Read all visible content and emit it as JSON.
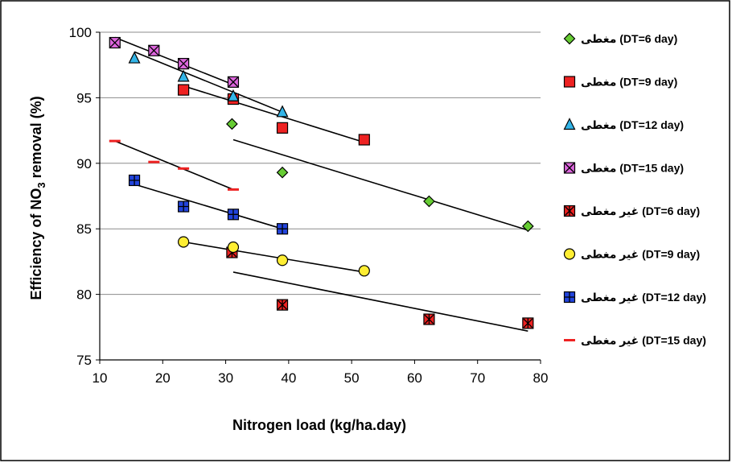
{
  "chart_data": {
    "type": "scatter",
    "title": "",
    "xlabel": "Nitrogen load (kg/ha.day)",
    "ylabel_prefix": "Efficiency of  NO",
    "ylabel_sub": "3",
    "ylabel_suffix": " removal (%)",
    "xlim": [
      10,
      80
    ],
    "ylim": [
      75,
      100
    ],
    "x_ticks": [
      "10",
      "20",
      "30",
      "40",
      "50",
      "60",
      "70",
      "80"
    ],
    "y_ticks": [
      "75",
      "80",
      "85",
      "90",
      "95",
      "100"
    ],
    "grid": "horizontal",
    "legend_position": "right",
    "series": [
      {
        "name": "مغطی (DT=6 day)",
        "marker": "diamond",
        "color": "#66cc33",
        "points": [
          [
            31,
            93.0
          ],
          [
            39,
            89.3
          ],
          [
            62.3,
            87.1
          ],
          [
            78,
            85.2
          ]
        ],
        "trend": [
          [
            31.2,
            91.8
          ],
          [
            78,
            84.9
          ]
        ]
      },
      {
        "name": "مغطی (DT=9 day)",
        "marker": "square",
        "color": "#ee2222",
        "points": [
          [
            23.3,
            95.6
          ],
          [
            31.2,
            94.9
          ],
          [
            39,
            92.7
          ],
          [
            52,
            91.8
          ]
        ],
        "trend": [
          [
            23.3,
            95.9
          ],
          [
            52,
            91.6
          ]
        ]
      },
      {
        "name": "مغطی  (DT=12 day)",
        "marker": "triangle",
        "color": "#33b5e8",
        "points": [
          [
            15.5,
            98.0
          ],
          [
            23.3,
            96.6
          ],
          [
            31.2,
            95.1
          ],
          [
            39,
            93.9
          ]
        ],
        "trend": [
          [
            15.5,
            98.5
          ],
          [
            39,
            93.9
          ]
        ]
      },
      {
        "name": "مغطی  (DT=15 day)",
        "marker": "square-x",
        "color": "#dd66dd",
        "points": [
          [
            12.4,
            99.2
          ],
          [
            18.6,
            98.6
          ],
          [
            23.3,
            97.6
          ],
          [
            31.2,
            96.2
          ]
        ],
        "trend": [
          [
            12.4,
            99.6
          ],
          [
            31.2,
            96.0
          ]
        ]
      },
      {
        "name": "غیر مغطی (DT=6 day)",
        "marker": "square-star",
        "color": "#ee2222",
        "points": [
          [
            31,
            83.2
          ],
          [
            39,
            79.2
          ],
          [
            62.3,
            78.1
          ],
          [
            78,
            77.8
          ]
        ],
        "trend": [
          [
            31.2,
            81.7
          ],
          [
            78,
            77.2
          ]
        ]
      },
      {
        "name": "غیر مغطی (DT=9 day)",
        "marker": "circle",
        "color": "#ffee33",
        "points": [
          [
            23.3,
            84.0
          ],
          [
            31.2,
            83.6
          ],
          [
            39,
            82.6
          ],
          [
            52,
            81.8
          ]
        ],
        "trend": [
          [
            23.3,
            84.0
          ],
          [
            52,
            81.7
          ]
        ]
      },
      {
        "name": "غیر مغطی (DT=12 day)",
        "marker": "square-plus",
        "color": "#2244dd",
        "points": [
          [
            15.5,
            88.7
          ],
          [
            23.3,
            86.7
          ],
          [
            31.2,
            86.1
          ],
          [
            39,
            85.0
          ]
        ],
        "trend": [
          [
            15.5,
            88.4
          ],
          [
            39,
            85.0
          ]
        ]
      },
      {
        "name": "غیر مغطی (DT=15 day)",
        "marker": "dash",
        "color": "#ee2222",
        "points": [
          [
            12.4,
            91.7
          ],
          [
            18.6,
            90.1
          ],
          [
            23.3,
            89.6
          ],
          [
            31.2,
            88.0
          ]
        ],
        "trend": [
          [
            12.4,
            91.7
          ],
          [
            31.2,
            88.0
          ]
        ]
      }
    ]
  }
}
